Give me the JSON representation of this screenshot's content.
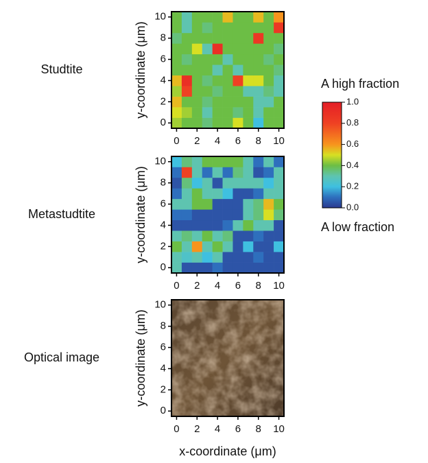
{
  "chart_data": [
    {
      "type": "heatmap",
      "label": "Studtite",
      "ylabel": "y-coordinate (μm)",
      "x": [
        0,
        1,
        2,
        3,
        4,
        5,
        6,
        7,
        8,
        9,
        10
      ],
      "y": [
        0,
        1,
        2,
        3,
        4,
        5,
        6,
        7,
        8,
        9,
        10
      ],
      "z": [
        [
          0.45,
          0.4,
          0.4,
          0.35,
          0.4,
          0.4,
          0.5,
          0.4,
          0.2,
          0.4,
          0.4
        ],
        [
          0.5,
          0.45,
          0.4,
          0.3,
          0.4,
          0.4,
          0.35,
          0.4,
          0.3,
          0.4,
          0.4
        ],
        [
          0.55,
          0.4,
          0.4,
          0.35,
          0.4,
          0.4,
          0.4,
          0.4,
          0.3,
          0.3,
          0.4
        ],
        [
          0.45,
          0.8,
          0.4,
          0.4,
          0.35,
          0.4,
          0.4,
          0.3,
          0.3,
          0.35,
          0.3
        ],
        [
          0.55,
          0.9,
          0.4,
          0.35,
          0.4,
          0.4,
          0.8,
          0.5,
          0.5,
          0.4,
          0.3
        ],
        [
          0.4,
          0.4,
          0.4,
          0.4,
          0.3,
          0.4,
          0.3,
          0.4,
          0.4,
          0.4,
          0.35
        ],
        [
          0.4,
          0.35,
          0.4,
          0.4,
          0.4,
          0.3,
          0.4,
          0.4,
          0.4,
          0.35,
          0.4
        ],
        [
          0.4,
          0.4,
          0.5,
          0.3,
          0.9,
          0.4,
          0.4,
          0.4,
          0.4,
          0.4,
          0.35
        ],
        [
          0.35,
          0.4,
          0.4,
          0.4,
          0.4,
          0.4,
          0.4,
          0.4,
          0.85,
          0.4,
          0.4
        ],
        [
          0.4,
          0.3,
          0.4,
          0.35,
          0.4,
          0.4,
          0.4,
          0.4,
          0.4,
          0.4,
          0.85
        ],
        [
          0.4,
          0.3,
          0.4,
          0.4,
          0.4,
          0.55,
          0.4,
          0.4,
          0.55,
          0.4,
          0.6
        ]
      ],
      "xlim": [
        -0.5,
        10.5
      ],
      "ylim": [
        -0.5,
        10.5
      ],
      "xticks": [
        0,
        2,
        4,
        6,
        8,
        10
      ],
      "yticks": [
        0,
        2,
        4,
        6,
        8,
        10
      ]
    },
    {
      "type": "heatmap",
      "label": "Metastudtite",
      "ylabel": "y-coordinate (μm)",
      "x": [
        0,
        1,
        2,
        3,
        4,
        5,
        6,
        7,
        8,
        9,
        10
      ],
      "y": [
        0,
        1,
        2,
        3,
        4,
        5,
        6,
        7,
        8,
        9,
        10
      ],
      "z": [
        [
          0.3,
          0.05,
          0.05,
          0.05,
          0.1,
          0.05,
          0.05,
          0.05,
          0.05,
          0.05,
          0.05
        ],
        [
          0.3,
          0.25,
          0.3,
          0.2,
          0.3,
          0.05,
          0.05,
          0.05,
          0.1,
          0.05,
          0.05
        ],
        [
          0.4,
          0.3,
          0.6,
          0.3,
          0.4,
          0.3,
          0.05,
          0.2,
          0.05,
          0.05,
          0.2
        ],
        [
          0.3,
          0.35,
          0.3,
          0.4,
          0.3,
          0.35,
          0.05,
          0.05,
          0.1,
          0.05,
          0.05
        ],
        [
          0.05,
          0.05,
          0.05,
          0.05,
          0.05,
          0.1,
          0.3,
          0.4,
          0.3,
          0.3,
          0.05
        ],
        [
          0.1,
          0.1,
          0.05,
          0.05,
          0.05,
          0.05,
          0.05,
          0.3,
          0.35,
          0.5,
          0.35
        ],
        [
          0.3,
          0.3,
          0.4,
          0.4,
          0.05,
          0.05,
          0.05,
          0.3,
          0.35,
          0.55,
          0.4
        ],
        [
          0.1,
          0.3,
          0.4,
          0.3,
          0.3,
          0.2,
          0.05,
          0.05,
          0.1,
          0.3,
          0.3
        ],
        [
          0.05,
          0.35,
          0.2,
          0.3,
          0.05,
          0.3,
          0.3,
          0.3,
          0.3,
          0.2,
          0.3
        ],
        [
          0.1,
          0.8,
          0.3,
          0.1,
          0.3,
          0.1,
          0.35,
          0.3,
          0.05,
          0.1,
          0.3
        ],
        [
          0.2,
          0.35,
          0.3,
          0.4,
          0.4,
          0.4,
          0.4,
          0.3,
          0.1,
          0.3,
          0.1
        ]
      ],
      "xlim": [
        -0.5,
        10.5
      ],
      "ylim": [
        -0.5,
        10.5
      ],
      "xticks": [
        0,
        2,
        4,
        6,
        8,
        10
      ],
      "yticks": [
        0,
        2,
        4,
        6,
        8,
        10
      ]
    },
    {
      "type": "image",
      "label": "Optical image",
      "ylabel": "y-coordinate (μm)",
      "xlabel": "x-coordinate (μm)",
      "xlim": [
        -0.5,
        10.5
      ],
      "ylim": [
        -0.5,
        10.5
      ],
      "xticks": [
        0,
        2,
        4,
        6,
        8,
        10
      ],
      "yticks": [
        0,
        2,
        4,
        6,
        8,
        10
      ]
    }
  ],
  "colorbar": {
    "high_label": "A high fraction",
    "low_label": "A low fraction",
    "lim": [
      0,
      1
    ],
    "ticks": [
      {
        "value": 0,
        "label": "0.0"
      },
      0.2,
      0.4,
      0.6,
      0.8,
      {
        "value": 1,
        "label": "1.0"
      }
    ],
    "colormap": [
      {
        "value": 0,
        "color": "#2b3990"
      },
      {
        "value": 0.1,
        "color": "#2e6fbd"
      },
      {
        "value": 0.2,
        "color": "#3fc0e0"
      },
      {
        "value": 0.3,
        "color": "#5ec4b0"
      },
      {
        "value": 0.4,
        "color": "#6cbe45"
      },
      {
        "value": 0.5,
        "color": "#d7df23"
      },
      {
        "value": 0.6,
        "color": "#f7941d"
      },
      {
        "value": 0.8,
        "color": "#ef4123"
      },
      {
        "value": 1,
        "color": "#e41e26"
      }
    ]
  }
}
